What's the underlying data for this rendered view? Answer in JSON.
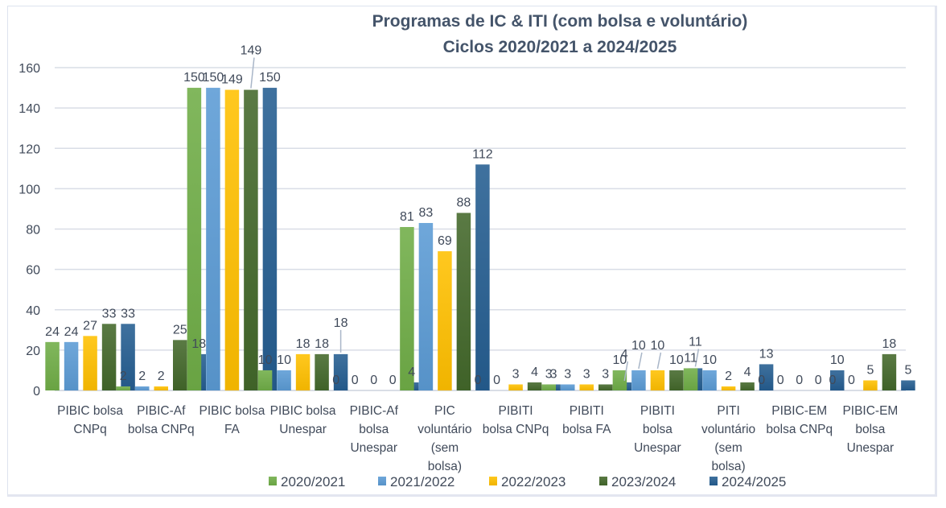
{
  "chart_data": {
    "type": "bar",
    "title": "Programas de IC & ITI (com bolsa e voluntário)",
    "subtitle": "Ciclos 2020/2021 a 2024/2025",
    "xlabel": "",
    "ylabel": "",
    "ylim": [
      0,
      160
    ],
    "yticks": [
      0,
      20,
      40,
      60,
      80,
      100,
      120,
      140,
      160
    ],
    "grid": true,
    "legend_position": "bottom",
    "categories": [
      [
        "PIBIC bolsa",
        "CNPq"
      ],
      [
        "PIBIC-Af",
        "bolsa CNPq"
      ],
      [
        "PIBIC bolsa",
        "FA"
      ],
      [
        "PIBIC bolsa",
        "Unespar"
      ],
      [
        "PIBIC-Af",
        "bolsa",
        "Unespar"
      ],
      [
        "PIC",
        "voluntário",
        "(sem",
        "bolsa)"
      ],
      [
        "PIBITI",
        "bolsa CNPq"
      ],
      [
        "PIBITI",
        "bolsa FA"
      ],
      [
        "PIBITI",
        "bolsa",
        "Unespar"
      ],
      [
        "PITI",
        "voluntário",
        "(sem",
        "bolsa)"
      ],
      [
        "PIBIC-EM",
        "bolsa CNPq"
      ],
      [
        "PIBIC-EM",
        "bolsa",
        "Unespar"
      ]
    ],
    "series": [
      {
        "name": "2020/2021",
        "color": "#70ad47",
        "values": [
          24,
          2,
          150,
          10,
          0,
          81,
          0,
          3,
          10,
          11,
          0,
          0
        ]
      },
      {
        "name": "2021/2022",
        "color": "#5b9bd5",
        "values": [
          24,
          2,
          150,
          10,
          0,
          83,
          0,
          3,
          10,
          10,
          0,
          0
        ]
      },
      {
        "name": "2022/2023",
        "color": "#ffc000",
        "values": [
          27,
          2,
          149,
          18,
          0,
          69,
          3,
          3,
          10,
          2,
          0,
          5
        ]
      },
      {
        "name": "2023/2024",
        "color": "#43682b",
        "values": [
          33,
          25,
          149,
          18,
          0,
          88,
          4,
          3,
          10,
          4,
          0,
          18
        ]
      },
      {
        "name": "2024/2025",
        "color": "#255e91",
        "values": [
          33,
          18,
          150,
          18,
          4,
          112,
          3,
          4,
          11,
          13,
          10,
          5
        ]
      }
    ]
  }
}
